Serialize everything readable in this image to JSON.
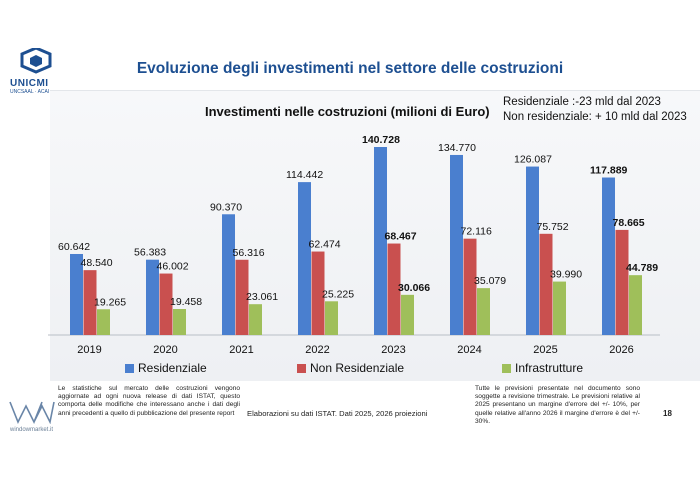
{
  "header": {
    "logo_text": "UNICMI",
    "logo_sub": "UNCSAAL · ACAI",
    "title": "Evoluzione degli investimenti nel settore delle costruzioni"
  },
  "notes": {
    "line1": "Residenziale :-23 mld dal 2023",
    "line2": "Non residenziale: + 10 mld dal 2023"
  },
  "chart_data": {
    "type": "bar",
    "title": "Investimenti nelle costruzioni (milioni di Euro)",
    "xlabel": "",
    "ylabel": "",
    "ylim": [
      0,
      150000
    ],
    "grid": false,
    "legend_position": "bottom",
    "categories": [
      "2019",
      "2020",
      "2021",
      "2022",
      "2023",
      "2024",
      "2025",
      "2026"
    ],
    "series": [
      {
        "name": "Residenziale",
        "color": "#4a7fcf",
        "values": [
          60642,
          56383,
          90370,
          114442,
          140728,
          134770,
          126087,
          117889
        ],
        "labels": [
          "60.642",
          "56.383",
          "90.370",
          "114.442",
          "140.728",
          "134.770",
          "126.087",
          "117.889"
        ],
        "bold": [
          false,
          false,
          false,
          false,
          true,
          false,
          false,
          true
        ]
      },
      {
        "name": "Non Residenziale",
        "color": "#c9504f",
        "values": [
          48540,
          46002,
          56316,
          62474,
          68467,
          72116,
          75752,
          78665
        ],
        "labels": [
          "48.540",
          "46.002",
          "56.316",
          "62.474",
          "68.467",
          "72.116",
          "75.752",
          "78.665"
        ],
        "bold": [
          false,
          false,
          false,
          false,
          true,
          false,
          false,
          true
        ]
      },
      {
        "name": "Infrastrutture",
        "color": "#9fbf5a",
        "values": [
          19265,
          19458,
          23061,
          25225,
          30066,
          35079,
          39990,
          44789
        ],
        "labels": [
          "19.265",
          "19.458",
          "23.061",
          "25.225",
          "30.066",
          "35.079",
          "39.990",
          "44.789"
        ],
        "bold": [
          false,
          false,
          false,
          false,
          true,
          false,
          false,
          true
        ]
      }
    ]
  },
  "footer": {
    "left_text": "Le statistiche sul mercato delle costruzioni vengono aggiornate ad ogni nuova release di dati ISTAT, questo comporta delle modifiche che interessano anche i dati degli anni precedenti a quello di pubblicazione del presente report",
    "mid_text": "Elaborazioni su dati ISTAT. Dati 2025, 2026 proiezioni",
    "right_text": "Tutte le previsioni presentate nel documento sono soggette a revisione trimestrale. Le previsioni relative al 2025 presentano un margine d'errore del +/- 10%, per quelle relative all'anno 2026 il margine d'errore è del +/- 30%.",
    "page_number": "18",
    "brand": "windowmarket.it"
  }
}
